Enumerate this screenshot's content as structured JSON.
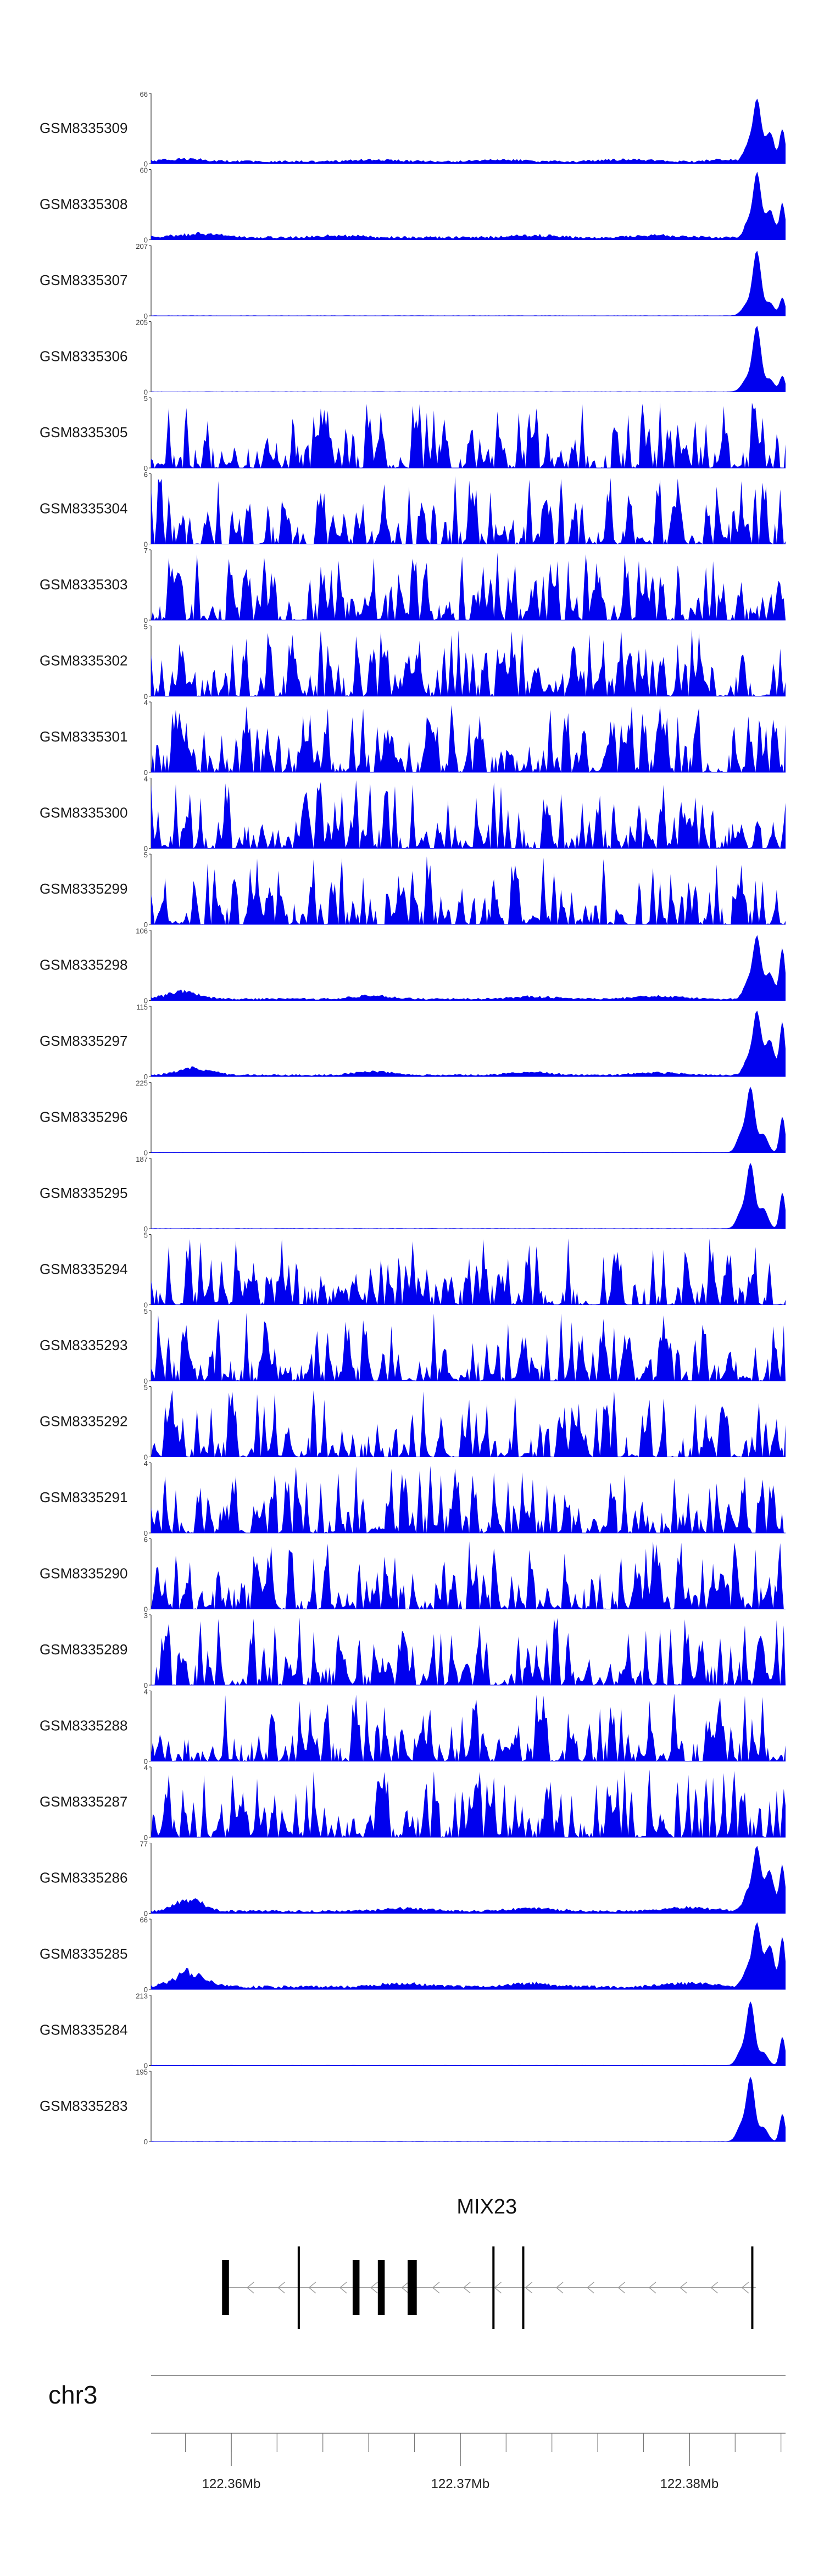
{
  "chart_data": {
    "type": "area",
    "title": "",
    "chromosome": "chr3",
    "x_range_mb": [
      122.3565,
      122.3842
    ],
    "colors": {
      "signal": "#0000ee",
      "axis": "#333333",
      "gene": "#000000"
    },
    "x_ticks": [
      {
        "pos_mb": 122.36,
        "label": "122.36Mb"
      },
      {
        "pos_mb": 122.37,
        "label": "122.37Mb"
      },
      {
        "pos_mb": 122.38,
        "label": "122.38Mb"
      }
    ],
    "minor_tick_step_mb": 0.002,
    "gene": {
      "name": "MIX23",
      "strand": "-",
      "start_mb": 122.3598,
      "end_mb": 122.3829,
      "exons": [
        {
          "start_mb": 122.3596,
          "end_mb": 122.3599
        },
        {
          "start_mb": 122.3629,
          "end_mb": 122.36295
        },
        {
          "start_mb": 122.3653,
          "end_mb": 122.3656
        },
        {
          "start_mb": 122.3664,
          "end_mb": 122.3667
        },
        {
          "start_mb": 122.3677,
          "end_mb": 122.3681
        },
        {
          "start_mb": 122.3714,
          "end_mb": 122.37145
        },
        {
          "start_mb": 122.3727,
          "end_mb": 122.37275
        },
        {
          "start_mb": 122.3827,
          "end_mb": 122.38275
        }
      ]
    },
    "series": [
      {
        "name": "GSM8335309",
        "ymax_label": "66",
        "ymin_label": "0",
        "ylim": [
          0,
          66
        ],
        "pattern": "peaks",
        "base": 2.5,
        "bumps": [
          [
            0.05,
            3,
            0.05
          ],
          [
            0.35,
            2,
            0.05
          ],
          [
            0.55,
            2,
            0.05
          ],
          [
            0.75,
            2.5,
            0.05
          ],
          [
            0.9,
            2,
            0.03
          ]
        ],
        "peaks": [
          [
            0.955,
            60,
            0.009
          ],
          [
            0.94,
            15,
            0.009
          ],
          [
            0.975,
            28,
            0.01
          ],
          [
            0.995,
            32,
            0.006
          ]
        ]
      },
      {
        "name": "GSM8335308",
        "ymax_label": "60",
        "ymin_label": "0",
        "ylim": [
          0,
          60
        ],
        "pattern": "peaks",
        "base": 2.5,
        "bumps": [
          [
            0.08,
            4,
            0.05
          ],
          [
            0.3,
            2,
            0.05
          ],
          [
            0.6,
            2,
            0.05
          ],
          [
            0.8,
            2,
            0.05
          ]
        ],
        "peaks": [
          [
            0.955,
            56,
            0.009
          ],
          [
            0.94,
            12,
            0.009
          ],
          [
            0.975,
            24,
            0.01
          ],
          [
            0.995,
            30,
            0.006
          ]
        ]
      },
      {
        "name": "GSM8335307",
        "ymax_label": "207",
        "ymin_label": "0",
        "ylim": [
          0,
          207
        ],
        "pattern": "peaks",
        "base": 1,
        "bumps": [],
        "peaks": [
          [
            0.955,
            190,
            0.009
          ],
          [
            0.94,
            35,
            0.012
          ],
          [
            0.975,
            40,
            0.01
          ],
          [
            0.995,
            55,
            0.006
          ]
        ]
      },
      {
        "name": "GSM8335306",
        "ymax_label": "205",
        "ymin_label": "0",
        "ylim": [
          0,
          205
        ],
        "pattern": "peaks",
        "base": 1,
        "bumps": [],
        "peaks": [
          [
            0.955,
            190,
            0.009
          ],
          [
            0.94,
            40,
            0.012
          ],
          [
            0.975,
            38,
            0.01
          ],
          [
            0.995,
            48,
            0.006
          ]
        ]
      },
      {
        "name": "GSM8335305",
        "ymax_label": "5",
        "ymin_label": "0",
        "ylim": [
          0,
          5
        ],
        "pattern": "noise",
        "seed": 11
      },
      {
        "name": "GSM8335304",
        "ymax_label": "6",
        "ymin_label": "0",
        "ylim": [
          0,
          6
        ],
        "pattern": "noise",
        "seed": 23
      },
      {
        "name": "GSM8335303",
        "ymax_label": "7",
        "ymin_label": "0",
        "ylim": [
          0,
          7
        ],
        "pattern": "noise",
        "seed": 37
      },
      {
        "name": "GSM8335302",
        "ymax_label": "5",
        "ymin_label": "0",
        "ylim": [
          0,
          5
        ],
        "pattern": "noise",
        "seed": 41
      },
      {
        "name": "GSM8335301",
        "ymax_label": "4",
        "ymin_label": "0",
        "ylim": [
          0,
          4
        ],
        "pattern": "noise",
        "seed": 53
      },
      {
        "name": "GSM8335300",
        "ymax_label": "4",
        "ymin_label": "0",
        "ylim": [
          0,
          4
        ],
        "pattern": "noise",
        "seed": 67
      },
      {
        "name": "GSM8335299",
        "ymax_label": "5",
        "ymin_label": "0",
        "ylim": [
          0,
          5
        ],
        "pattern": "noise",
        "seed": 71
      },
      {
        "name": "GSM8335298",
        "ymax_label": "106",
        "ymin_label": "0",
        "ylim": [
          0,
          106
        ],
        "pattern": "peaks",
        "base": 3,
        "bumps": [
          [
            0.05,
            14,
            0.035
          ],
          [
            0.35,
            6,
            0.04
          ],
          [
            0.6,
            4,
            0.05
          ],
          [
            0.8,
            5,
            0.05
          ]
        ],
        "peaks": [
          [
            0.955,
            95,
            0.009
          ],
          [
            0.94,
            25,
            0.01
          ],
          [
            0.975,
            40,
            0.01
          ],
          [
            0.995,
            80,
            0.006
          ]
        ]
      },
      {
        "name": "GSM8335297",
        "ymax_label": "115",
        "ymin_label": "0",
        "ylim": [
          0,
          115
        ],
        "pattern": "peaks",
        "base": 3,
        "bumps": [
          [
            0.07,
            14,
            0.035
          ],
          [
            0.35,
            8,
            0.04
          ],
          [
            0.6,
            5,
            0.05
          ],
          [
            0.8,
            5,
            0.05
          ]
        ],
        "peaks": [
          [
            0.955,
            105,
            0.009
          ],
          [
            0.94,
            25,
            0.01
          ],
          [
            0.975,
            60,
            0.01
          ],
          [
            0.995,
            90,
            0.006
          ]
        ]
      },
      {
        "name": "GSM8335296",
        "ymax_label": "225",
        "ymin_label": "0",
        "ylim": [
          0,
          225
        ],
        "pattern": "peaks",
        "base": 1,
        "bumps": [],
        "peaks": [
          [
            0.945,
            210,
            0.009
          ],
          [
            0.93,
            60,
            0.01
          ],
          [
            0.965,
            60,
            0.01
          ],
          [
            0.995,
            120,
            0.006
          ]
        ]
      },
      {
        "name": "GSM8335295",
        "ymax_label": "187",
        "ymin_label": "0",
        "ylim": [
          0,
          187
        ],
        "pattern": "peaks",
        "base": 1,
        "bumps": [],
        "peaks": [
          [
            0.945,
            175,
            0.009
          ],
          [
            0.93,
            45,
            0.01
          ],
          [
            0.965,
            55,
            0.01
          ],
          [
            0.995,
            100,
            0.006
          ]
        ]
      },
      {
        "name": "GSM8335294",
        "ymax_label": "5",
        "ymin_label": "0",
        "ylim": [
          0,
          5
        ],
        "pattern": "noise",
        "seed": 83
      },
      {
        "name": "GSM8335293",
        "ymax_label": "5",
        "ymin_label": "0",
        "ylim": [
          0,
          5
        ],
        "pattern": "noise",
        "seed": 97
      },
      {
        "name": "GSM8335292",
        "ymax_label": "5",
        "ymin_label": "0",
        "ylim": [
          0,
          5
        ],
        "pattern": "noise",
        "seed": 101
      },
      {
        "name": "GSM8335291",
        "ymax_label": "4",
        "ymin_label": "0",
        "ylim": [
          0,
          4
        ],
        "pattern": "noise",
        "seed": 113
      },
      {
        "name": "GSM8335290",
        "ymax_label": "6",
        "ymin_label": "0",
        "ylim": [
          0,
          6
        ],
        "pattern": "noise",
        "seed": 127
      },
      {
        "name": "GSM8335289",
        "ymax_label": "3",
        "ymin_label": "0",
        "ylim": [
          0,
          3
        ],
        "pattern": "noise",
        "seed": 131
      },
      {
        "name": "GSM8335288",
        "ymax_label": "4",
        "ymin_label": "0",
        "ylim": [
          0,
          4
        ],
        "pattern": "noise",
        "seed": 149
      },
      {
        "name": "GSM8335287",
        "ymax_label": "4",
        "ymin_label": "0",
        "ylim": [
          0,
          4
        ],
        "pattern": "noise",
        "seed": 157
      },
      {
        "name": "GSM8335286",
        "ymax_label": "77",
        "ymin_label": "0",
        "ylim": [
          0,
          77
        ],
        "pattern": "peaks",
        "base": 3,
        "bumps": [
          [
            0.06,
            15,
            0.03
          ],
          [
            0.4,
            4,
            0.05
          ],
          [
            0.6,
            4,
            0.05
          ],
          [
            0.85,
            5,
            0.05
          ]
        ],
        "peaks": [
          [
            0.955,
            70,
            0.009
          ],
          [
            0.94,
            20,
            0.01
          ],
          [
            0.975,
            45,
            0.01
          ],
          [
            0.995,
            52,
            0.006
          ]
        ]
      },
      {
        "name": "GSM8335285",
        "ymax_label": "66",
        "ymin_label": "0",
        "ylim": [
          0,
          66
        ],
        "pattern": "peaks",
        "base": 3,
        "bumps": [
          [
            0.06,
            16,
            0.035
          ],
          [
            0.4,
            4,
            0.05
          ],
          [
            0.6,
            4,
            0.05
          ],
          [
            0.85,
            5,
            0.05
          ]
        ],
        "peaks": [
          [
            0.955,
            60,
            0.009
          ],
          [
            0.94,
            18,
            0.01
          ],
          [
            0.975,
            40,
            0.01
          ],
          [
            0.995,
            48,
            0.006
          ]
        ]
      },
      {
        "name": "GSM8335284",
        "ymax_label": "213",
        "ymin_label": "0",
        "ylim": [
          0,
          213
        ],
        "pattern": "peaks",
        "base": 1,
        "bumps": [],
        "peaks": [
          [
            0.945,
            195,
            0.009
          ],
          [
            0.93,
            45,
            0.01
          ],
          [
            0.965,
            40,
            0.01
          ],
          [
            0.995,
            90,
            0.006
          ]
        ]
      },
      {
        "name": "GSM8335283",
        "ymax_label": "195",
        "ymin_label": "0",
        "ylim": [
          0,
          195
        ],
        "pattern": "peaks",
        "base": 1,
        "bumps": [],
        "peaks": [
          [
            0.945,
            180,
            0.009
          ],
          [
            0.93,
            45,
            0.01
          ],
          [
            0.965,
            40,
            0.01
          ],
          [
            0.995,
            80,
            0.006
          ]
        ]
      }
    ]
  }
}
